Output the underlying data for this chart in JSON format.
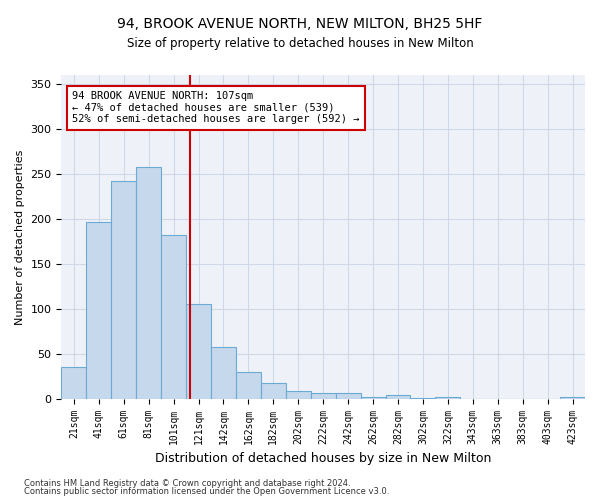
{
  "title": "94, BROOK AVENUE NORTH, NEW MILTON, BH25 5HF",
  "subtitle": "Size of property relative to detached houses in New Milton",
  "xlabel": "Distribution of detached houses by size in New Milton",
  "ylabel": "Number of detached properties",
  "bar_values": [
    35,
    197,
    242,
    258,
    182,
    105,
    58,
    30,
    17,
    9,
    6,
    6,
    2,
    4,
    1,
    2,
    0,
    0,
    0,
    0,
    2
  ],
  "bin_labels": [
    "21sqm",
    "41sqm",
    "61sqm",
    "81sqm",
    "101sqm",
    "121sqm",
    "142sqm",
    "162sqm",
    "182sqm",
    "202sqm",
    "222sqm",
    "242sqm",
    "262sqm",
    "282sqm",
    "302sqm",
    "322sqm",
    "343sqm",
    "363sqm",
    "383sqm",
    "403sqm",
    "423sqm"
  ],
  "bar_color": "#c5d8ec",
  "bar_edge_color": "#6aaad4",
  "grid_color": "#d0d8e8",
  "background_color": "#eef2f8",
  "vline_x": 4.65,
  "vline_color": "#cc0000",
  "annotation_text": "94 BROOK AVENUE NORTH: 107sqm\n← 47% of detached houses are smaller (539)\n52% of semi-detached houses are larger (592) →",
  "annotation_box_color": "#ffffff",
  "annotation_box_edge": "#cc0000",
  "ylim": [
    0,
    360
  ],
  "yticks": [
    0,
    50,
    100,
    150,
    200,
    250,
    300,
    350
  ],
  "footer_line1": "Contains HM Land Registry data © Crown copyright and database right 2024.",
  "footer_line2": "Contains public sector information licensed under the Open Government Licence v3.0."
}
